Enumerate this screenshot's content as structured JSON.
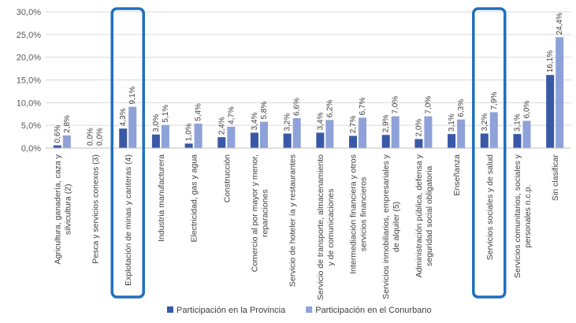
{
  "chart_data": {
    "type": "bar",
    "categories": [
      [
        "Agricultura, ganadería, caza y",
        "silvicultura (2)"
      ],
      [
        "Pesca y servicios conexos (3)"
      ],
      [
        "Explotación de minas y canteras (4)"
      ],
      [
        "Industria manufacturera"
      ],
      [
        "Electricidad, gas y agua"
      ],
      [
        "Construcción"
      ],
      [
        "Comercio al por mayor y menor,",
        "reparaciones"
      ],
      [
        "Servicio de hoteler ía y restaurantes"
      ],
      [
        "Servicio de transporte, almacenamiento",
        "y de comunicaciones"
      ],
      [
        "Intermediación financiera y otros",
        "servicios financieros"
      ],
      [
        "Servicios inmobiliarios, empresariales y",
        "de alquiler (5)"
      ],
      [
        "Administración pública, defensa y",
        "seguridad social obligatoria"
      ],
      [
        "Enseñanza"
      ],
      [
        "Servicios sociales y de salud"
      ],
      [
        "Servicios comunitarios, sociales y",
        "personales n.c.p."
      ],
      [
        "Sin clasificar"
      ]
    ],
    "series": [
      {
        "name": "Participación en la Provincia",
        "values": [
          0.6,
          0.0,
          4.3,
          3.0,
          1.0,
          2.4,
          3.4,
          3.2,
          3.4,
          2.7,
          2.9,
          2.0,
          3.1,
          3.2,
          3.1,
          16.1
        ],
        "labels": [
          "0,6%",
          "0,0%",
          "4,3%",
          "3,0%",
          "1,0%",
          "2,4%",
          "3,4%",
          "3,2%",
          "3,4%",
          "2,7%",
          "2,9%",
          "2,0%",
          "3,1%",
          "3,2%",
          "3,1%",
          "16,1%"
        ],
        "color": "#3a58a8"
      },
      {
        "name": "Participación en el Conurbano",
        "values": [
          2.8,
          0.0,
          9.1,
          5.1,
          5.4,
          4.7,
          5.8,
          6.6,
          6.2,
          6.7,
          7.0,
          7.0,
          6.3,
          7.9,
          6.0,
          24.4
        ],
        "labels": [
          "2,8%",
          "0,0%",
          "9,1%",
          "5,1%",
          "5,4%",
          "4,7%",
          "5,8%",
          "6,6%",
          "6,2%",
          "6,7%",
          "7,0%",
          "7,0%",
          "6,3%",
          "7,9%",
          "6,0%",
          "24,4%"
        ],
        "color": "#8ea2d9"
      }
    ],
    "yticks": [
      "0,0%",
      "5,0%",
      "10,0%",
      "15,0%",
      "20,0%",
      "25,0%",
      "30,0%"
    ],
    "ylim": [
      0,
      30
    ],
    "grid": true,
    "legend_position": "bottom",
    "highlighted_categories": [
      2,
      13
    ],
    "highlight_color": "#1f6fbf"
  }
}
